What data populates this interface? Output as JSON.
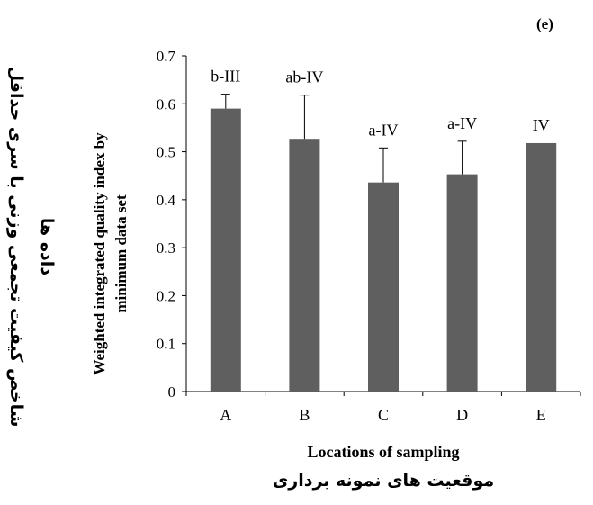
{
  "chart_data": {
    "type": "bar",
    "panel_label": "(e)",
    "categories": [
      "A",
      "B",
      "C",
      "D",
      "E"
    ],
    "values": [
      0.59,
      0.527,
      0.436,
      0.453,
      0.518
    ],
    "error_upper": [
      0.62,
      0.618,
      0.508,
      0.522,
      null
    ],
    "data_labels": [
      "b-III",
      "ab-IV",
      "a-IV",
      "a-IV",
      "IV"
    ],
    "ylim": [
      0,
      0.7
    ],
    "yticks": [
      0,
      0.1,
      0.2,
      0.3,
      0.4,
      0.5,
      0.6,
      0.7
    ],
    "ytick_labels": [
      "0",
      "0.1",
      "0.2",
      "0.3",
      "0.4",
      "0.5",
      "0.6",
      "0.7"
    ],
    "xlabel": "Locations of sampling",
    "xlabel_persian": "موقعیت های نمونه برداری",
    "ylabel_lines": [
      "Weighted integrated quality index by",
      "minimum  data set"
    ],
    "ylabel_persian_lines": [
      "شاخص کیفیت تجمعی وزنی با سری حداقل",
      "داده ها"
    ],
    "bar_color": "#5f5f5f",
    "grid": false,
    "legend": "none"
  }
}
